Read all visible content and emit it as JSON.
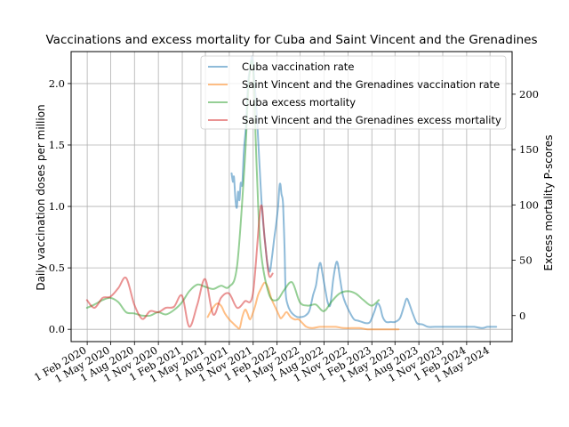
{
  "chart_data": {
    "type": "line",
    "title": "Vaccinations and excess mortality for Cuba and Saint Vincent and the Grenadines",
    "ylabel_left": "Daily vaccination doses per million",
    "ylabel_right": "Excess mortality P-scores",
    "ylim_left": [
      -0.1,
      2.26
    ],
    "ylim_right": [
      -23.5,
      238.5
    ],
    "yticks_left": [
      "0.0",
      "0.5",
      "1.0",
      "1.5",
      "2.0"
    ],
    "yticks_right": [
      "0",
      "50",
      "100",
      "150",
      "200"
    ],
    "xlim": [
      "2019-12-01",
      "2024-07-25"
    ],
    "xticks": [
      {
        "date": "2020-02-01",
        "label": "1 Feb 2020"
      },
      {
        "date": "2020-05-01",
        "label": "1 May 2020"
      },
      {
        "date": "2020-08-01",
        "label": "1 Aug 2020"
      },
      {
        "date": "2020-11-01",
        "label": "1 Nov 2020"
      },
      {
        "date": "2021-02-01",
        "label": "1 Feb 2021"
      },
      {
        "date": "2021-05-01",
        "label": "1 May 2021"
      },
      {
        "date": "2021-08-01",
        "label": "1 Aug 2021"
      },
      {
        "date": "2021-11-01",
        "label": "1 Nov 2021"
      },
      {
        "date": "2022-02-01",
        "label": "1 Feb 2022"
      },
      {
        "date": "2022-05-01",
        "label": "1 May 2022"
      },
      {
        "date": "2022-08-01",
        "label": "1 Aug 2022"
      },
      {
        "date": "2022-11-01",
        "label": "1 Nov 2022"
      },
      {
        "date": "2023-02-01",
        "label": "1 Feb 2023"
      },
      {
        "date": "2023-05-01",
        "label": "1 May 2023"
      },
      {
        "date": "2023-08-01",
        "label": "1 Aug 2023"
      },
      {
        "date": "2023-11-01",
        "label": "1 Nov 2023"
      },
      {
        "date": "2024-02-01",
        "label": "1 Feb 2024"
      },
      {
        "date": "2024-05-01",
        "label": "1 May 2024"
      }
    ],
    "grid": true,
    "legend_position": "top-right",
    "series": [
      {
        "name": "Cuba vaccination rate",
        "axis": "left",
        "color": "#1f77b4",
        "points": [
          [
            "2021-08-10",
            1.27
          ],
          [
            "2021-08-15",
            1.2
          ],
          [
            "2021-08-19",
            1.24
          ],
          [
            "2021-08-25",
            1.05
          ],
          [
            "2021-08-30",
            0.99
          ],
          [
            "2021-09-04",
            1.12
          ],
          [
            "2021-09-09",
            1.05
          ],
          [
            "2021-09-14",
            1.19
          ],
          [
            "2021-09-20",
            1.18
          ],
          [
            "2021-09-26",
            1.45
          ],
          [
            "2021-10-04",
            1.65
          ],
          [
            "2021-10-12",
            2.0
          ],
          [
            "2021-10-20",
            2.12
          ],
          [
            "2021-10-28",
            2.22
          ],
          [
            "2021-11-05",
            2.05
          ],
          [
            "2021-11-15",
            1.75
          ],
          [
            "2021-11-25",
            1.35
          ],
          [
            "2021-12-05",
            0.98
          ],
          [
            "2021-12-15",
            0.75
          ],
          [
            "2021-12-25",
            0.55
          ],
          [
            "2022-01-04",
            0.47
          ],
          [
            "2022-01-12",
            0.58
          ],
          [
            "2022-01-20",
            0.72
          ],
          [
            "2022-01-28",
            0.85
          ],
          [
            "2022-02-05",
            1.0
          ],
          [
            "2022-02-10",
            1.16
          ],
          [
            "2022-02-14",
            1.18
          ],
          [
            "2022-02-18",
            1.1
          ],
          [
            "2022-02-24",
            1.02
          ],
          [
            "2022-03-02",
            0.65
          ],
          [
            "2022-03-06",
            0.3
          ],
          [
            "2022-03-14",
            0.2
          ],
          [
            "2022-03-24",
            0.15
          ],
          [
            "2022-04-05",
            0.12
          ],
          [
            "2022-04-20",
            0.1
          ],
          [
            "2022-05-05",
            0.1
          ],
          [
            "2022-05-20",
            0.11
          ],
          [
            "2022-06-05",
            0.15
          ],
          [
            "2022-06-20",
            0.28
          ],
          [
            "2022-07-01",
            0.36
          ],
          [
            "2022-07-10",
            0.49
          ],
          [
            "2022-07-18",
            0.54
          ],
          [
            "2022-07-26",
            0.45
          ],
          [
            "2022-08-05",
            0.33
          ],
          [
            "2022-08-15",
            0.22
          ],
          [
            "2022-08-25",
            0.2
          ],
          [
            "2022-09-05",
            0.4
          ],
          [
            "2022-09-15",
            0.53
          ],
          [
            "2022-09-22",
            0.54
          ],
          [
            "2022-10-01",
            0.42
          ],
          [
            "2022-10-12",
            0.28
          ],
          [
            "2022-10-25",
            0.2
          ],
          [
            "2022-11-10",
            0.13
          ],
          [
            "2022-11-25",
            0.08
          ],
          [
            "2022-12-10",
            0.07
          ],
          [
            "2022-12-25",
            0.06
          ],
          [
            "2023-01-10",
            0.05
          ],
          [
            "2023-01-25",
            0.06
          ],
          [
            "2023-02-10",
            0.14
          ],
          [
            "2023-02-22",
            0.21
          ],
          [
            "2023-03-05",
            0.18
          ],
          [
            "2023-03-15",
            0.1
          ],
          [
            "2023-03-28",
            0.06
          ],
          [
            "2023-04-15",
            0.06
          ],
          [
            "2023-05-01",
            0.06
          ],
          [
            "2023-05-20",
            0.09
          ],
          [
            "2023-06-05",
            0.19
          ],
          [
            "2023-06-15",
            0.25
          ],
          [
            "2023-06-25",
            0.21
          ],
          [
            "2023-07-10",
            0.12
          ],
          [
            "2023-07-25",
            0.05
          ],
          [
            "2023-08-15",
            0.04
          ],
          [
            "2023-09-05",
            0.02
          ],
          [
            "2023-10-01",
            0.02
          ],
          [
            "2023-11-01",
            0.02
          ],
          [
            "2023-12-01",
            0.02
          ],
          [
            "2024-01-01",
            0.02
          ],
          [
            "2024-02-01",
            0.02
          ],
          [
            "2024-03-01",
            0.02
          ],
          [
            "2024-04-01",
            0.01
          ],
          [
            "2024-04-20",
            0.02
          ],
          [
            "2024-05-10",
            0.02
          ],
          [
            "2024-05-25",
            0.02
          ]
        ]
      },
      {
        "name": "Saint Vincent and the Grenadines vaccination rate",
        "axis": "left",
        "color": "#ff7f0e",
        "points": [
          [
            "2021-05-10",
            0.1
          ],
          [
            "2021-05-20",
            0.14
          ],
          [
            "2021-06-01",
            0.18
          ],
          [
            "2021-06-15",
            0.21
          ],
          [
            "2021-07-01",
            0.19
          ],
          [
            "2021-07-15",
            0.13
          ],
          [
            "2021-08-01",
            0.08
          ],
          [
            "2021-08-15",
            0.05
          ],
          [
            "2021-08-30",
            0.02
          ],
          [
            "2021-09-10",
            0.01
          ],
          [
            "2021-09-20",
            0.1
          ],
          [
            "2021-10-01",
            0.16
          ],
          [
            "2021-10-10",
            0.13
          ],
          [
            "2021-10-20",
            0.08
          ],
          [
            "2021-11-01",
            0.14
          ],
          [
            "2021-11-10",
            0.2
          ],
          [
            "2021-11-20",
            0.28
          ],
          [
            "2021-12-01",
            0.33
          ],
          [
            "2021-12-15",
            0.38
          ],
          [
            "2021-12-28",
            0.34
          ],
          [
            "2022-01-10",
            0.25
          ],
          [
            "2022-01-25",
            0.18
          ],
          [
            "2022-02-05",
            0.13
          ],
          [
            "2022-02-15",
            0.09
          ],
          [
            "2022-02-25",
            0.11
          ],
          [
            "2022-03-10",
            0.14
          ],
          [
            "2022-03-25",
            0.1
          ],
          [
            "2022-04-10",
            0.08
          ],
          [
            "2022-04-25",
            0.08
          ],
          [
            "2022-05-10",
            0.05
          ],
          [
            "2022-05-25",
            0.02
          ],
          [
            "2022-06-15",
            0.01
          ],
          [
            "2022-07-15",
            0.02
          ],
          [
            "2022-08-15",
            0.02
          ],
          [
            "2022-09-15",
            0.02
          ],
          [
            "2022-10-15",
            0.01
          ],
          [
            "2022-11-15",
            0.01
          ],
          [
            "2022-12-15",
            0.01
          ],
          [
            "2023-01-15",
            0.0
          ],
          [
            "2023-02-15",
            0.0
          ],
          [
            "2023-03-15",
            0.0
          ],
          [
            "2023-04-15",
            0.0
          ],
          [
            "2023-05-15",
            0.0
          ]
        ]
      },
      {
        "name": "Cuba excess mortality",
        "axis": "right",
        "color": "#2ca02c",
        "points": [
          [
            "2020-01-31",
            7
          ],
          [
            "2020-02-29",
            10
          ],
          [
            "2020-03-31",
            14
          ],
          [
            "2020-04-30",
            16
          ],
          [
            "2020-05-31",
            12
          ],
          [
            "2020-06-30",
            3
          ],
          [
            "2020-07-31",
            2
          ],
          [
            "2020-08-31",
            0
          ],
          [
            "2020-09-30",
            0
          ],
          [
            "2020-10-31",
            3
          ],
          [
            "2020-11-30",
            1
          ],
          [
            "2020-12-31",
            5
          ],
          [
            "2021-01-31",
            12
          ],
          [
            "2021-02-28",
            22
          ],
          [
            "2021-03-31",
            28
          ],
          [
            "2021-04-30",
            26
          ],
          [
            "2021-05-31",
            24
          ],
          [
            "2021-06-30",
            27
          ],
          [
            "2021-07-31",
            26
          ],
          [
            "2021-08-31",
            45
          ],
          [
            "2021-09-30",
            140
          ],
          [
            "2021-10-15",
            210
          ],
          [
            "2021-10-31",
            225
          ],
          [
            "2021-11-15",
            130
          ],
          [
            "2021-11-30",
            60
          ],
          [
            "2021-12-31",
            20
          ],
          [
            "2022-01-31",
            14
          ],
          [
            "2022-02-28",
            23
          ],
          [
            "2022-03-31",
            30
          ],
          [
            "2022-04-30",
            12
          ],
          [
            "2022-05-31",
            9
          ],
          [
            "2022-06-30",
            10
          ],
          [
            "2022-07-31",
            4
          ],
          [
            "2022-08-31",
            13
          ],
          [
            "2022-09-30",
            20
          ],
          [
            "2022-10-31",
            22
          ],
          [
            "2022-11-30",
            20
          ],
          [
            "2022-12-31",
            14
          ],
          [
            "2023-01-31",
            9
          ],
          [
            "2023-02-28",
            14
          ]
        ]
      },
      {
        "name": "Saint Vincent and the Grenadines excess mortality",
        "axis": "right",
        "color": "#d62728",
        "points": [
          [
            "2020-01-31",
            14
          ],
          [
            "2020-02-29",
            7
          ],
          [
            "2020-03-31",
            16
          ],
          [
            "2020-04-30",
            17
          ],
          [
            "2020-05-31",
            25
          ],
          [
            "2020-06-30",
            34
          ],
          [
            "2020-07-31",
            10
          ],
          [
            "2020-08-31",
            -3
          ],
          [
            "2020-09-30",
            4
          ],
          [
            "2020-10-31",
            3
          ],
          [
            "2020-11-30",
            7
          ],
          [
            "2020-12-31",
            8
          ],
          [
            "2021-01-31",
            18
          ],
          [
            "2021-02-28",
            -10
          ],
          [
            "2021-03-31",
            10
          ],
          [
            "2021-04-30",
            33
          ],
          [
            "2021-05-31",
            1
          ],
          [
            "2021-06-30",
            16
          ],
          [
            "2021-07-31",
            20
          ],
          [
            "2021-08-31",
            7
          ],
          [
            "2021-09-30",
            13
          ],
          [
            "2021-10-31",
            20
          ],
          [
            "2021-11-30",
            98
          ],
          [
            "2021-12-15",
            70
          ],
          [
            "2021-12-31",
            37
          ],
          [
            "2022-01-15",
            38
          ]
        ]
      }
    ]
  }
}
